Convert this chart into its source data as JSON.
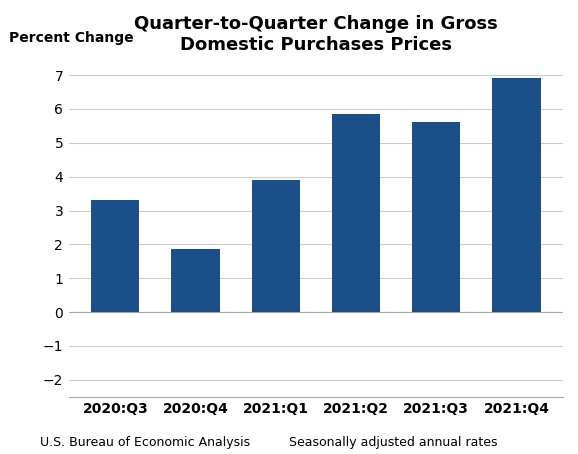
{
  "title": "Quarter-to-Quarter Change in Gross\nDomestic Purchases Prices",
  "ylabel": "Percent Change",
  "categories": [
    "2020:Q3",
    "2020:Q4",
    "2021:Q1",
    "2021:Q2",
    "2021:Q3",
    "2021:Q4"
  ],
  "values": [
    3.3,
    1.85,
    3.9,
    5.85,
    5.6,
    6.9
  ],
  "bar_color": "#1a4f8a",
  "ylim": [
    -2.5,
    7.5
  ],
  "yticks": [
    -2,
    -1,
    0,
    1,
    2,
    3,
    4,
    5,
    6,
    7
  ],
  "footer_left": "U.S. Bureau of Economic Analysis",
  "footer_right": "Seasonally adjusted annual rates",
  "background_color": "#ffffff",
  "grid_color": "#cccccc",
  "title_fontsize": 13,
  "tick_fontsize": 10,
  "footer_fontsize": 9,
  "bar_width": 0.6
}
